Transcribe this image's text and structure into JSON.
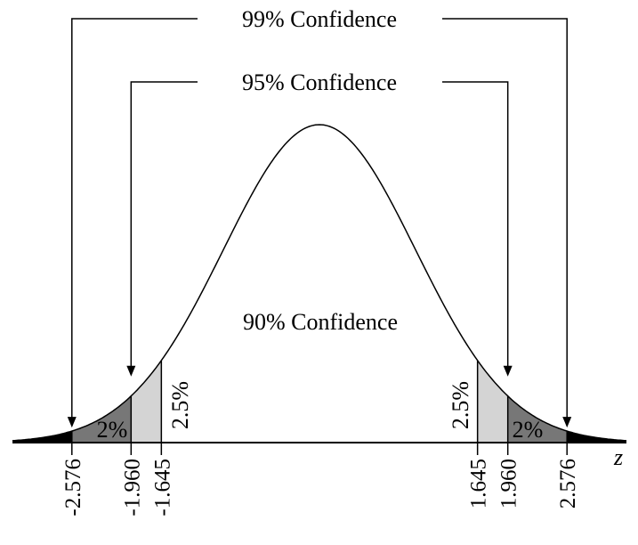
{
  "labels": {
    "conf99": "99% Confidence",
    "conf95": "95% Confidence",
    "conf90": "90% Confidence",
    "axis_z": "z"
  },
  "areas": {
    "left_mid": "2%",
    "left_inner": "2.5%",
    "right_inner": "2.5%",
    "right_mid": "2%"
  },
  "ticks": [
    "-2.576",
    "-1.960",
    "-1.645",
    "1.645",
    "1.960",
    "2.576"
  ],
  "colors": {
    "tail_black": "#000000",
    "band_dark": "#777777",
    "band_light": "#d4d4d4",
    "line": "#000000"
  }
}
